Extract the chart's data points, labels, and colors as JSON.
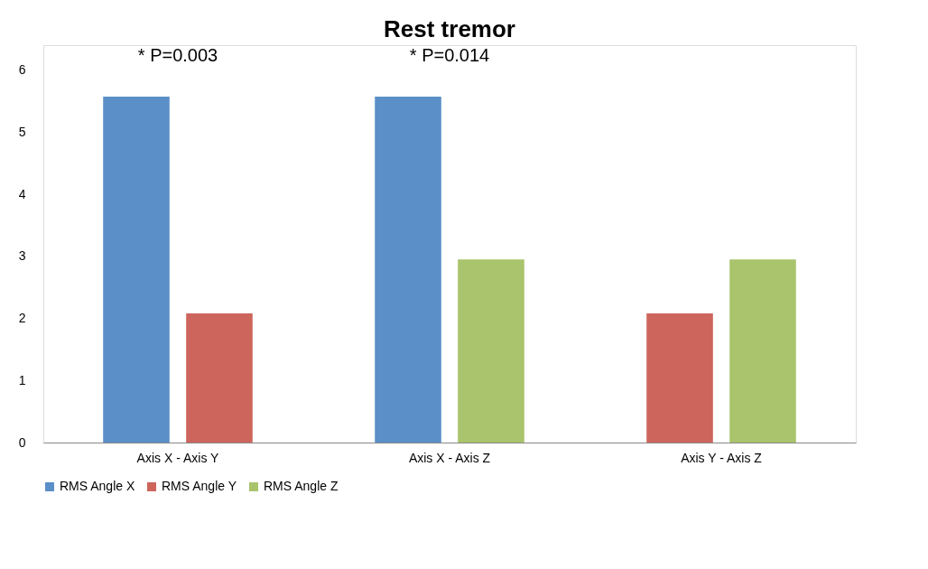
{
  "chart_data": {
    "type": "bar",
    "title": "Rest tremor",
    "categories": [
      "Axis X - Axis Y",
      "Axis X - Axis Z",
      "Axis Y - Axis Z"
    ],
    "series": [
      {
        "name": "RMS Angle X",
        "color": "#5b8fc7",
        "values": [
          5.57,
          5.57,
          null
        ]
      },
      {
        "name": "RMS Angle Y",
        "color": "#cd655c",
        "values": [
          2.08,
          null,
          2.08
        ]
      },
      {
        "name": "RMS Angle Z",
        "color": "#a9c46c",
        "values": [
          null,
          2.95,
          2.95
        ]
      }
    ],
    "ylim": [
      0,
      6.4
    ],
    "yticks": [
      0,
      1,
      2,
      3,
      4,
      5,
      6
    ],
    "grid": false,
    "legend": "bottom",
    "annotations": [
      "* P=0.003",
      "* P=0.014"
    ]
  }
}
